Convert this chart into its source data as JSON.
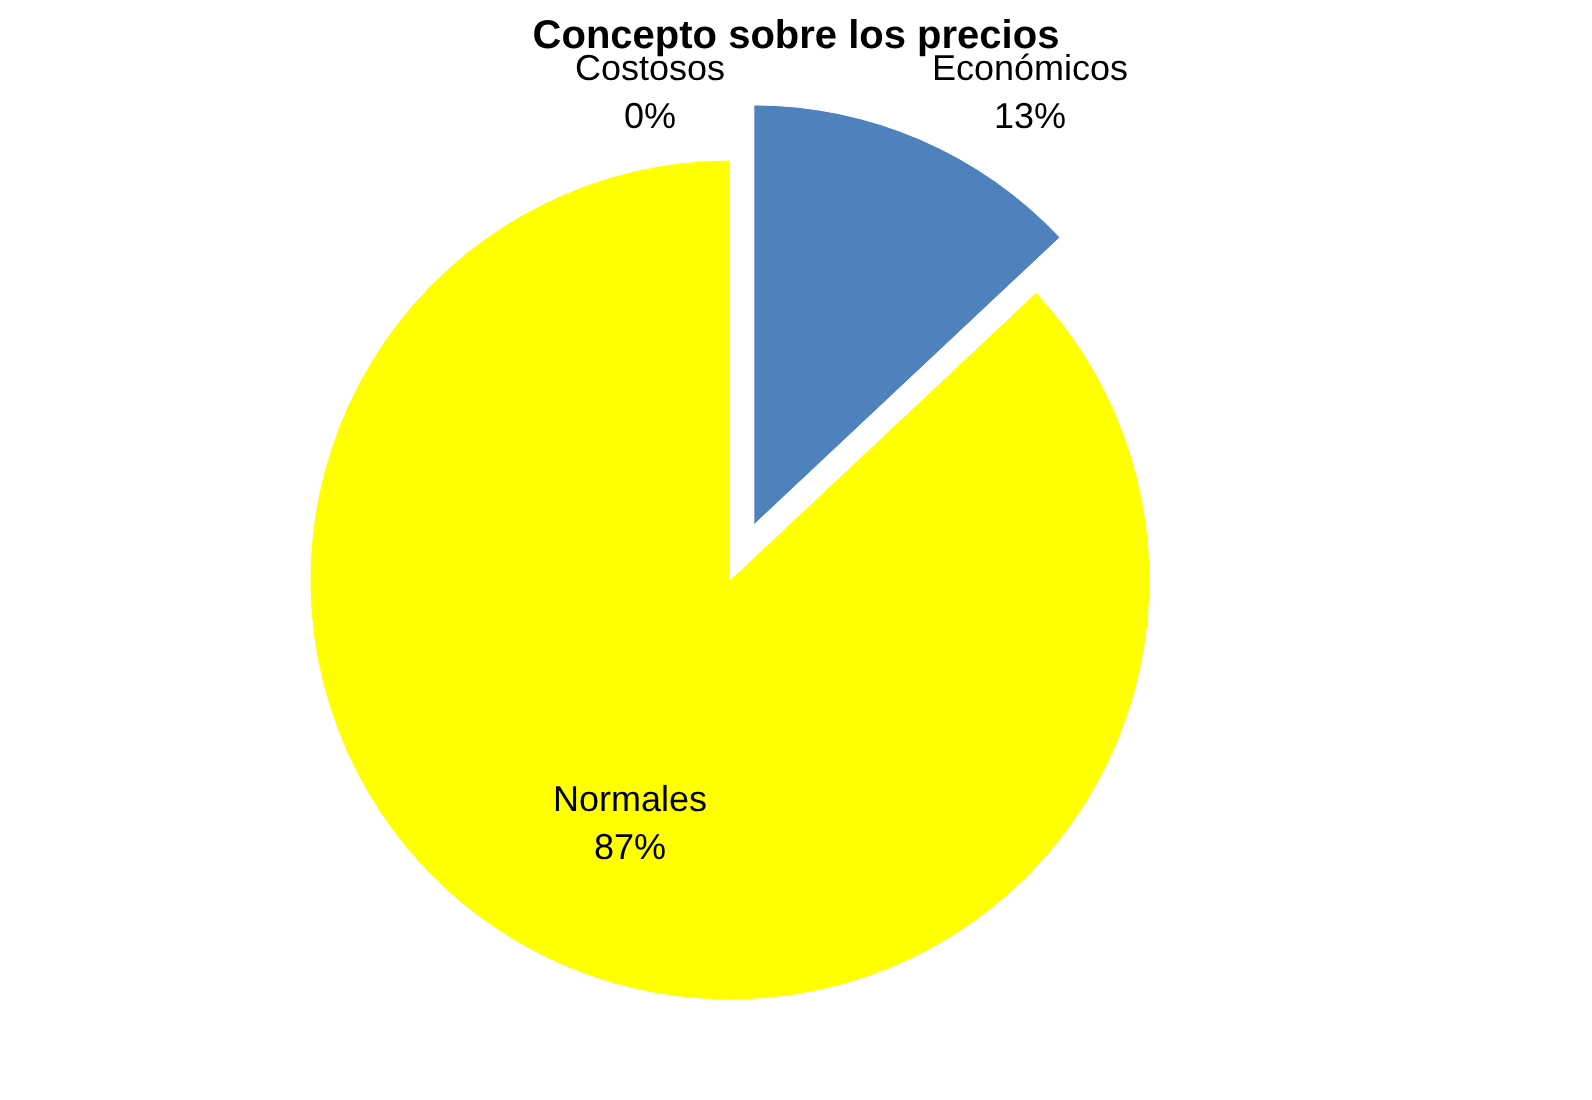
{
  "chart_data": {
    "type": "pie",
    "title": "Concepto sobre los precios",
    "categories": [
      "Costosos",
      "Económicos",
      "Normales"
    ],
    "values": [
      0,
      13,
      87
    ],
    "value_labels": [
      "0%",
      "13%",
      "87%"
    ],
    "colors": [
      "#c0504d",
      "#4f81bd",
      "#ffff00"
    ],
    "legend": false
  }
}
